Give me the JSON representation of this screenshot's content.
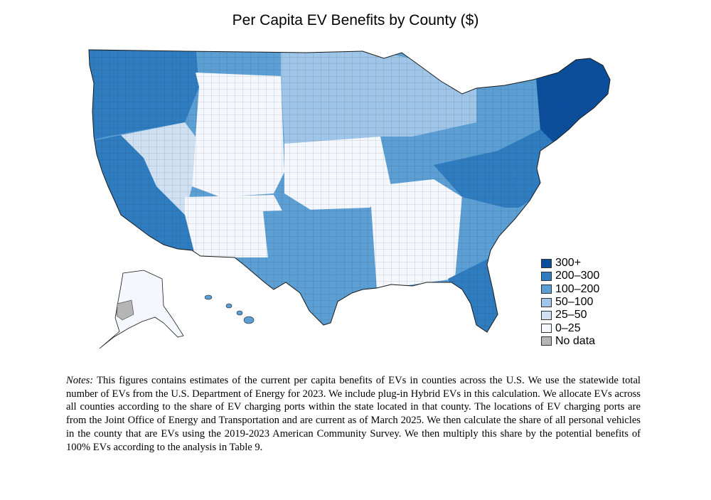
{
  "map": {
    "title": "Per Capita EV Benefits by County ($)",
    "legend": [
      {
        "label": "300+",
        "color": "#0b4f9c"
      },
      {
        "label": "200–300",
        "color": "#2f7dc0"
      },
      {
        "label": "100–200",
        "color": "#5b9fd4"
      },
      {
        "label": "50–100",
        "color": "#9fc6e8"
      },
      {
        "label": "25–50",
        "color": "#cfe0f3"
      },
      {
        "label": "0–25",
        "color": "#f4f7fd"
      },
      {
        "label": "No data",
        "color": "#b5b5b5"
      }
    ],
    "region_colors": {
      "pacific_northwest": "#2f7dc0",
      "california": "#2f7dc0",
      "great_basin": "#cfe0f3",
      "mountain": "#f4f7fd",
      "southwest": "#f4f7fd",
      "northern_plains": "#9fc6e8",
      "central_plains": "#f4f7fd",
      "texas": "#5b9fd4",
      "upper_midwest": "#9fc6e8",
      "midwest": "#5b9fd4",
      "south_central": "#f4f7fd",
      "appalachia": "#2f7dc0",
      "southeast": "#5b9fd4",
      "florida": "#2f7dc0",
      "mid_atlantic": "#2f7dc0",
      "new_england": "#0b4f9c",
      "alaska": "#f4f7fd",
      "hawaii": "#5b9fd4"
    }
  },
  "notes": {
    "label": "Notes:",
    "text": "This figures contains estimates of the current per capita benefits of EVs in counties across the U.S. We use the statewide total number of EVs from the U.S. Department of Energy for 2023. We include plug-in Hybrid EVs in this calculation. We allocate EVs across all counties according to the share of EV charging ports within the state located in that county. The locations of EV charging ports are from the Joint Office of Energy and Transportation and are current as of March 2025. We then calculate the share of all personal vehicles in the county that are EVs using the 2019-2023 American Community Survey. We then multiply this share by the potential benefits of 100% EVs according to the analysis in Table 9."
  }
}
